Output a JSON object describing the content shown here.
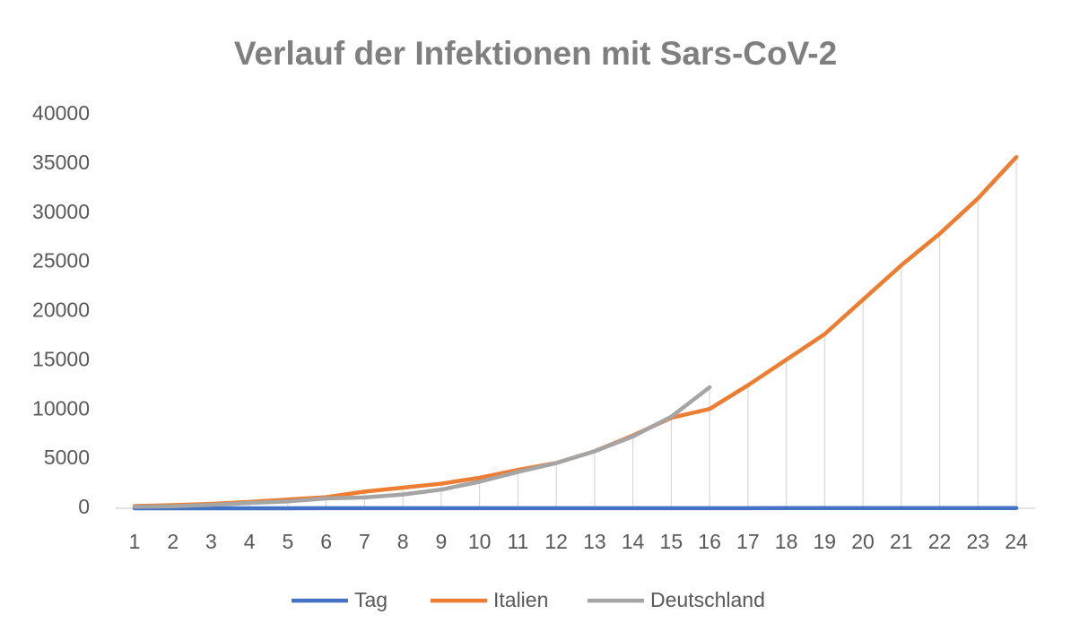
{
  "chart_data": {
    "type": "line",
    "title": "Verlauf der Infektionen mit Sars-CoV-2",
    "categories": [
      "1",
      "2",
      "3",
      "4",
      "5",
      "6",
      "7",
      "8",
      "9",
      "10",
      "11",
      "12",
      "13",
      "14",
      "15",
      "16",
      "17",
      "18",
      "19",
      "20",
      "21",
      "22",
      "23",
      "24"
    ],
    "series": [
      {
        "name": "Tag",
        "color": "#4472c4",
        "values": [
          1,
          2,
          3,
          4,
          5,
          6,
          7,
          8,
          9,
          10,
          11,
          12,
          13,
          14,
          15,
          16,
          17,
          18,
          19,
          20,
          21,
          22,
          23,
          24
        ]
      },
      {
        "name": "Italien",
        "color": "#ed7d31",
        "values": [
          230,
          320,
          450,
          650,
          890,
          1130,
          1700,
          2100,
          2500,
          3100,
          3900,
          4600,
          5800,
          7400,
          9200,
          10100,
          12500,
          15100,
          17700,
          21200,
          24700,
          27900,
          31500,
          35700
        ]
      },
      {
        "name": "Deutschland",
        "color": "#a5a5a5",
        "values": [
          150,
          200,
          350,
          550,
          700,
          1000,
          1100,
          1400,
          1900,
          2700,
          3700,
          4600,
          5800,
          7300,
          9300,
          12300,
          null,
          null,
          null,
          null,
          null,
          null,
          null,
          null
        ]
      }
    ],
    "ylim": [
      0,
      40000
    ],
    "yticks": [
      0,
      5000,
      10000,
      15000,
      20000,
      25000,
      30000,
      35000,
      40000
    ],
    "grid": false,
    "drop_lines": true,
    "legend": "bottom"
  }
}
